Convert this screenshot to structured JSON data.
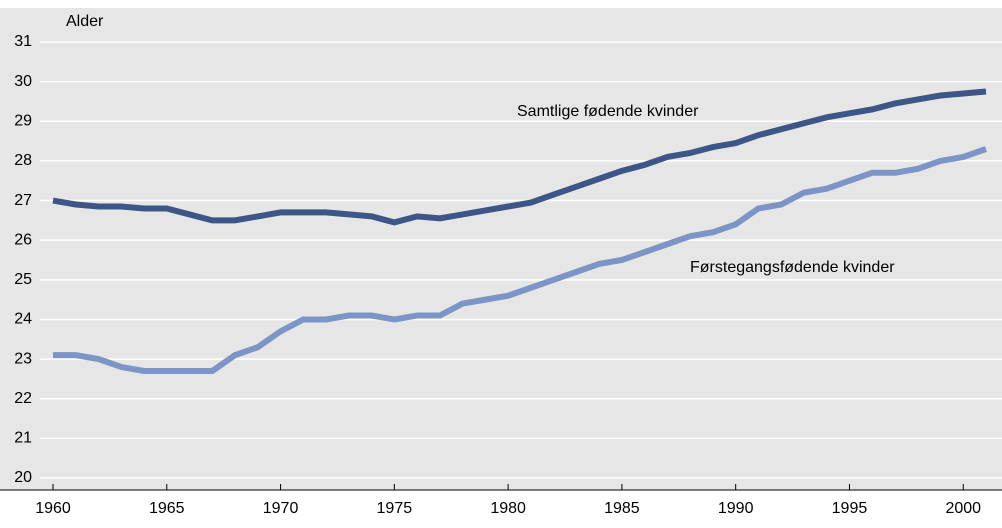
{
  "chart_data": {
    "type": "line",
    "ylabel": "Alder",
    "x": [
      1960,
      1961,
      1962,
      1963,
      1964,
      1965,
      1966,
      1967,
      1968,
      1969,
      1970,
      1971,
      1972,
      1973,
      1974,
      1975,
      1976,
      1977,
      1978,
      1979,
      1980,
      1981,
      1982,
      1983,
      1984,
      1985,
      1986,
      1987,
      1988,
      1989,
      1990,
      1991,
      1992,
      1993,
      1994,
      1995,
      1996,
      1997,
      1998,
      1999,
      2000,
      2001
    ],
    "series": [
      {
        "name": "Samtlige fødende kvinder",
        "color": "#3d5687",
        "values": [
          27.0,
          26.9,
          26.85,
          26.85,
          26.8,
          26.8,
          26.65,
          26.5,
          26.5,
          26.6,
          26.7,
          26.7,
          26.7,
          26.65,
          26.6,
          26.45,
          26.6,
          26.55,
          26.65,
          26.75,
          26.85,
          26.95,
          27.15,
          27.35,
          27.55,
          27.75,
          27.9,
          28.1,
          28.2,
          28.35,
          28.45,
          28.65,
          28.8,
          28.95,
          29.1,
          29.2,
          29.3,
          29.45,
          29.55,
          29.65,
          29.7,
          29.75
        ]
      },
      {
        "name": "Førstegangsfødende kvinder",
        "color": "#7c95c6",
        "values": [
          23.1,
          23.1,
          23.0,
          22.8,
          22.7,
          22.7,
          22.7,
          22.7,
          23.1,
          23.3,
          23.7,
          24.0,
          24.0,
          24.1,
          24.1,
          24.0,
          24.1,
          24.1,
          24.4,
          24.5,
          24.6,
          24.8,
          25.0,
          25.2,
          25.4,
          25.5,
          25.7,
          25.9,
          26.1,
          26.2,
          26.4,
          26.8,
          26.9,
          27.2,
          27.3,
          27.5,
          27.7,
          27.7,
          27.8,
          28.0,
          28.1,
          28.3
        ]
      }
    ],
    "xlim": [
      1960,
      2001
    ],
    "xticks": [
      1960,
      1965,
      1970,
      1975,
      1980,
      1985,
      1990,
      1995,
      2000
    ],
    "ylim": [
      20,
      31
    ],
    "yticks": [
      20,
      21,
      22,
      23,
      24,
      25,
      26,
      27,
      28,
      29,
      30,
      31
    ],
    "grid": true
  }
}
